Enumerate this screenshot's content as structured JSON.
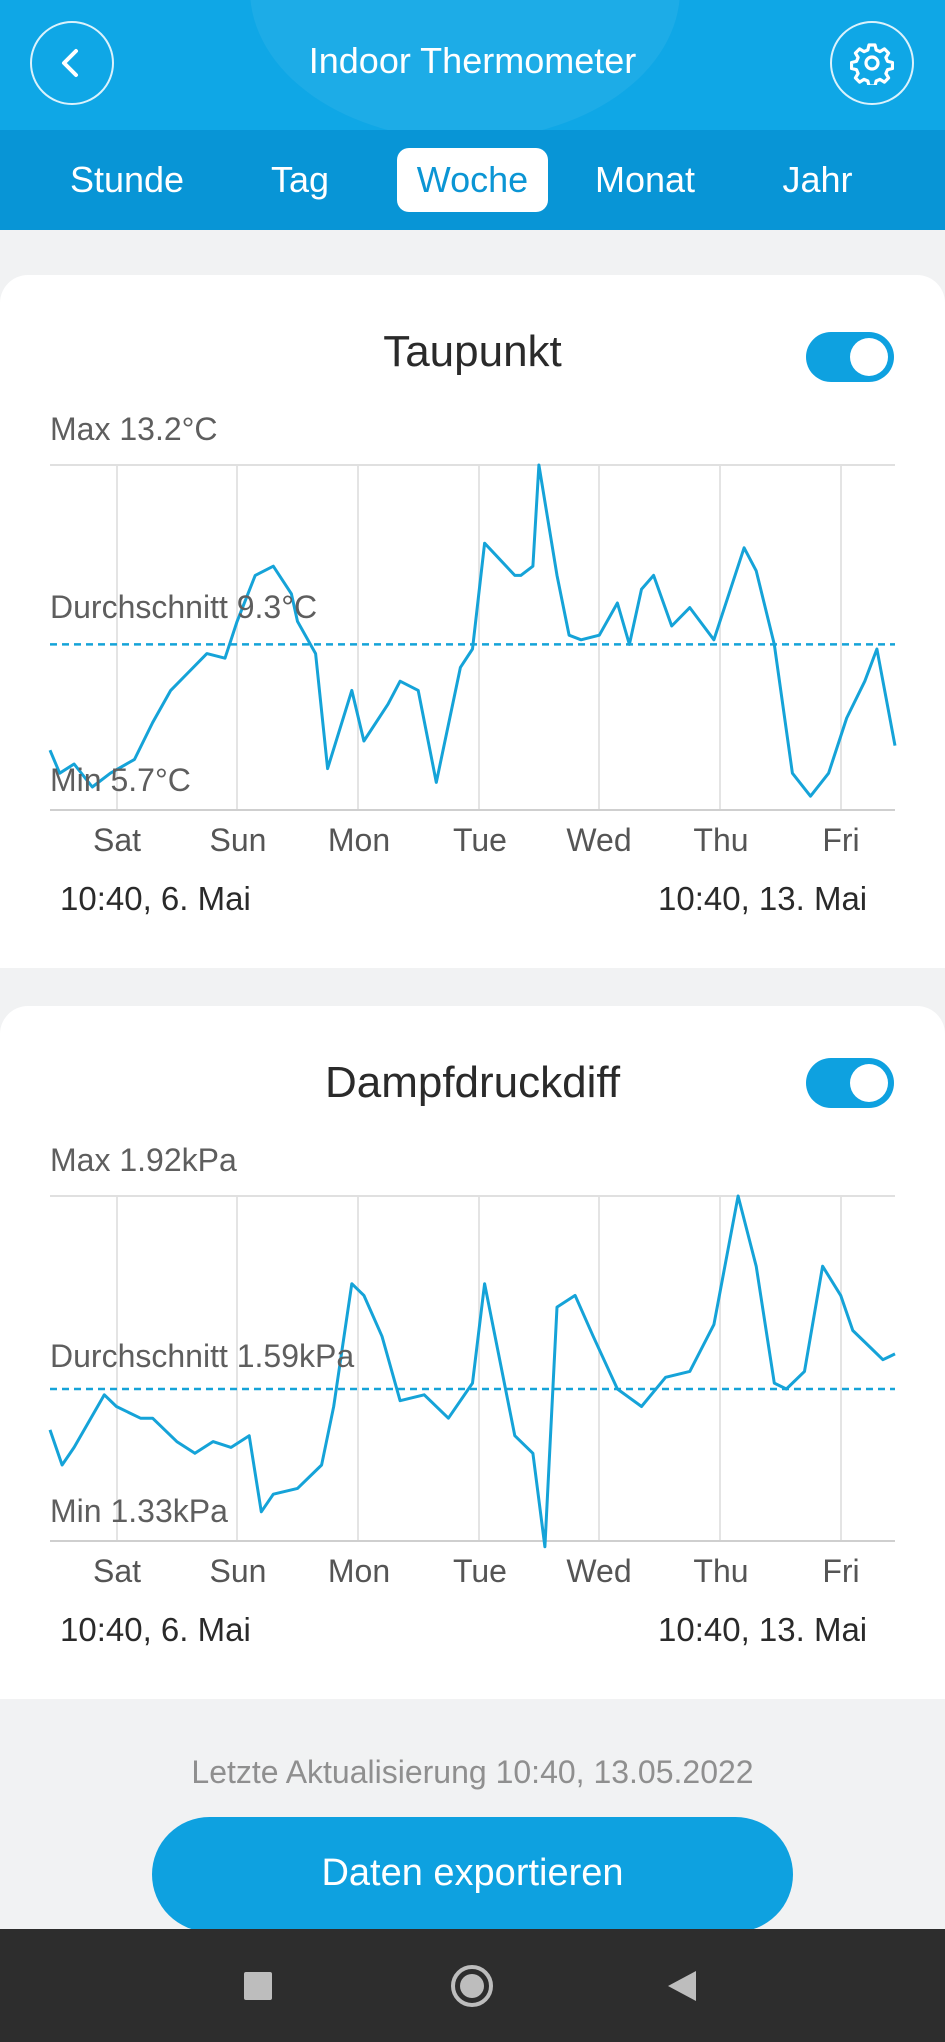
{
  "header": {
    "title": "Indoor Thermometer"
  },
  "tabs": [
    "Stunde",
    "Tag",
    "Woche",
    "Monat",
    "Jahr"
  ],
  "active_tab": "Woche",
  "charts": [
    {
      "title": "Taupunkt",
      "toggle_on": true,
      "max_label": "Max 13.2°C",
      "avg_label": "Durchschnitt 9.3°C",
      "min_label": "Min 5.7°C",
      "days": [
        "Sat",
        "Sun",
        "Mon",
        "Tue",
        "Wed",
        "Thu",
        "Fri"
      ],
      "start_date": "10:40,  6. Mai",
      "end_date": "10:40,  13. Mai"
    },
    {
      "title": "Dampfdruckdiff",
      "toggle_on": true,
      "max_label": "Max 1.92kPa",
      "avg_label": "Durchschnitt 1.59kPa",
      "min_label": "Min 1.33kPa",
      "days": [
        "Sat",
        "Sun",
        "Mon",
        "Tue",
        "Wed",
        "Thu",
        "Fri"
      ],
      "start_date": "10:40,  6. Mai",
      "end_date": "10:40,  13. Mai"
    }
  ],
  "chart_data": [
    {
      "type": "line",
      "title": "Taupunkt",
      "unit": "°C",
      "x_range_days": [
        0,
        7
      ],
      "x_ticks": [
        "Sat",
        "Sun",
        "Mon",
        "Tue",
        "Wed",
        "Thu",
        "Fri"
      ],
      "ylim": [
        5.7,
        13.2
      ],
      "average": 9.3,
      "x": [
        0,
        0.08,
        0.2,
        0.35,
        0.5,
        0.7,
        0.85,
        1.0,
        1.15,
        1.3,
        1.45,
        1.55,
        1.7,
        1.85,
        2.0,
        2.05,
        2.2,
        2.3,
        2.5,
        2.6,
        2.8,
        2.9,
        3.05,
        3.2,
        3.4,
        3.5,
        3.6,
        3.85,
        3.9,
        4.0,
        4.05,
        4.2,
        4.3,
        4.4,
        4.55,
        4.7,
        4.8,
        4.9,
        5.0,
        5.15,
        5.3,
        5.5,
        5.75,
        5.85,
        6.0,
        6.15,
        6.3,
        6.45,
        6.6,
        6.75,
        6.85,
        7.0
      ],
      "y": [
        7.0,
        6.5,
        6.7,
        6.2,
        6.5,
        6.8,
        7.6,
        8.3,
        8.7,
        9.1,
        9.0,
        9.8,
        10.8,
        11.0,
        10.4,
        9.8,
        9.1,
        6.6,
        8.3,
        7.2,
        8.0,
        8.5,
        8.3,
        6.3,
        8.8,
        9.2,
        11.5,
        10.8,
        10.8,
        11.0,
        13.2,
        10.8,
        9.5,
        9.4,
        9.5,
        10.2,
        9.3,
        10.5,
        10.8,
        9.7,
        10.1,
        9.4,
        11.4,
        10.9,
        9.3,
        6.5,
        6.0,
        6.5,
        7.7,
        8.5,
        9.2,
        7.1
      ]
    },
    {
      "type": "line",
      "title": "Dampfdruckdiff",
      "unit": "kPa",
      "x_range_days": [
        0,
        7
      ],
      "x_ticks": [
        "Sat",
        "Sun",
        "Mon",
        "Tue",
        "Wed",
        "Thu",
        "Fri"
      ],
      "ylim": [
        1.33,
        1.92
      ],
      "average": 1.59,
      "x": [
        0,
        0.1,
        0.2,
        0.45,
        0.55,
        0.75,
        0.85,
        1.05,
        1.2,
        1.35,
        1.5,
        1.65,
        1.75,
        1.85,
        2.05,
        2.25,
        2.35,
        2.5,
        2.6,
        2.75,
        2.9,
        3.1,
        3.3,
        3.5,
        3.6,
        3.85,
        4.0,
        4.1,
        4.2,
        4.35,
        4.5,
        4.7,
        4.9,
        5.1,
        5.3,
        5.5,
        5.7,
        5.85,
        6.0,
        6.1,
        6.25,
        6.4,
        6.55,
        6.65,
        6.8,
        6.9,
        7.0
      ],
      "y": [
        1.52,
        1.46,
        1.49,
        1.58,
        1.56,
        1.54,
        1.54,
        1.5,
        1.48,
        1.5,
        1.49,
        1.51,
        1.38,
        1.41,
        1.42,
        1.46,
        1.56,
        1.77,
        1.75,
        1.68,
        1.57,
        1.58,
        1.54,
        1.6,
        1.77,
        1.51,
        1.48,
        1.32,
        1.73,
        1.75,
        1.68,
        1.59,
        1.56,
        1.61,
        1.62,
        1.7,
        1.92,
        1.8,
        1.6,
        1.59,
        1.62,
        1.8,
        1.75,
        1.69,
        1.66,
        1.64,
        1.65
      ]
    }
  ]
}
